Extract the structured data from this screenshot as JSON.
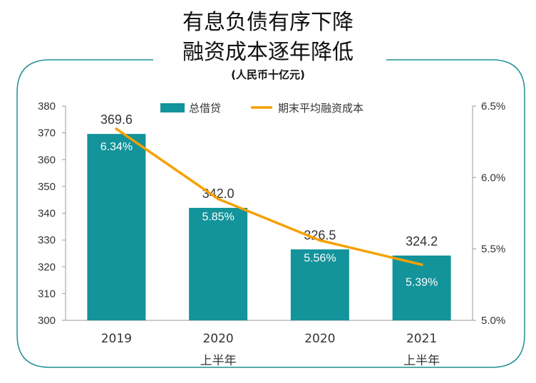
{
  "title_line1": "有息负债有序下降",
  "title_line2": "融资成本逐年降低",
  "subtitle": "(人民币十亿元)",
  "colors": {
    "bar": "#13939A",
    "line": "#F5A000",
    "frame": "#1F8F91"
  },
  "chart_data": {
    "type": "bar",
    "categories": [
      "2019",
      "2020\n上半年",
      "2020",
      "2021\n上半年"
    ],
    "category_labels": [
      {
        "line1": "2019",
        "line2": ""
      },
      {
        "line1": "2020",
        "line2": "上半年"
      },
      {
        "line1": "2020",
        "line2": ""
      },
      {
        "line1": "2021",
        "line2": "上半年"
      }
    ],
    "series": [
      {
        "name": "总借贷",
        "type": "bar",
        "axis": "left",
        "values": [
          369.6,
          342.0,
          326.5,
          324.2
        ],
        "labels": [
          "369.6",
          "342.0",
          "326.5",
          "324.2"
        ]
      },
      {
        "name": "期末平均融资成本",
        "type": "line",
        "axis": "right",
        "values": [
          6.34,
          5.85,
          5.56,
          5.39
        ],
        "labels": [
          "6.34%",
          "5.85%",
          "5.56%",
          "5.39%"
        ]
      }
    ],
    "left_axis": {
      "ylim": [
        300,
        380
      ],
      "ticks": [
        "300",
        "310",
        "320",
        "330",
        "340",
        "350",
        "360",
        "370",
        "380"
      ]
    },
    "right_axis": {
      "ylim": [
        5.0,
        6.5
      ],
      "ticks": [
        "5.0%",
        "5.5%",
        "6.0%",
        "6.5%"
      ]
    },
    "legend_position": "top"
  }
}
